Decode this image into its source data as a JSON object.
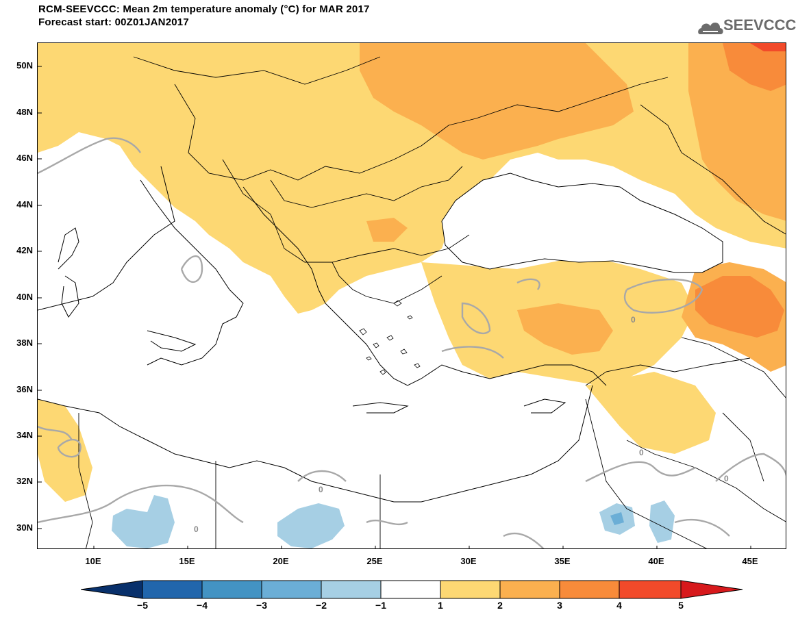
{
  "header": {
    "title_line1": "RCM-SEEVCCC: Mean 2m temperature anomaly (°C) for MAR 2017",
    "title_line2": "Forecast start: 00Z01JAN2017",
    "logo_text": "SEEVCCC",
    "logo_icon": "cloud-icon"
  },
  "map": {
    "lat_labels": [
      "50N",
      "48N",
      "46N",
      "44N",
      "42N",
      "40N",
      "38N",
      "36N",
      "34N",
      "32N",
      "30N"
    ],
    "lon_labels": [
      "10E",
      "15E",
      "20E",
      "25E",
      "30E",
      "35E",
      "40E",
      "45E"
    ],
    "contour_label": "0"
  },
  "colorbar": {
    "labels": [
      "−5",
      "−4",
      "−3",
      "−2",
      "−1",
      "1",
      "2",
      "3",
      "4",
      "5"
    ],
    "colors": {
      "lt_-5": "#08306b",
      "-5_-4": "#2166ac",
      "-4_-3": "#4393c3",
      "-3_-2": "#6baed6",
      "-2_-1": "#a6cfe4",
      "-1_1": "#ffffff",
      "1_2": "#fdd873",
      "2_3": "#fbb04f",
      "3_4": "#f88b3a",
      "4_5": "#f24a2a",
      "gt_5": "#d7191c"
    }
  }
}
